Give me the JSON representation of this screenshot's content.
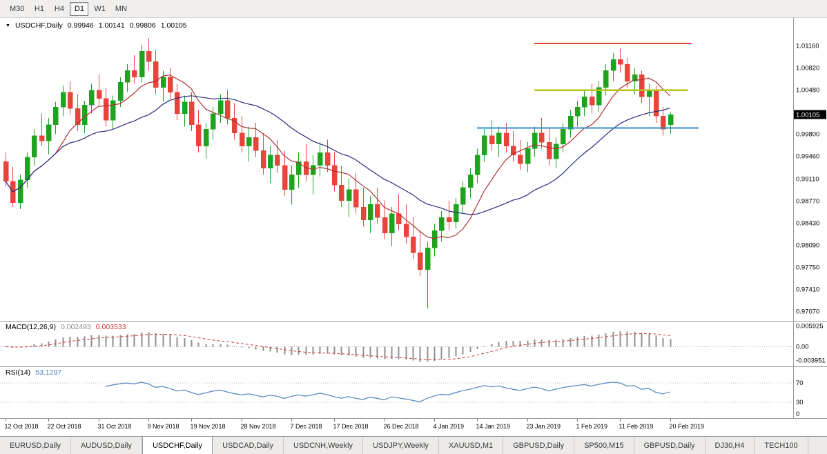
{
  "colors": {
    "bull": "#1fa31f",
    "bear": "#e8443c",
    "ma_fast": "#b03030",
    "ma_slow": "#28287e",
    "macd_hist": "#8f8f8f",
    "macd_signal": "#cc3838",
    "rsi_line": "#4f81bd",
    "grid_dotted": "#bcbcbc",
    "axis_line": "#9a9a9a",
    "price_box_bg": "#000000",
    "price_box_text": "#ffffff"
  },
  "toolbar": {
    "timeframes": [
      {
        "label": "M30",
        "active": false
      },
      {
        "label": "H1",
        "active": false
      },
      {
        "label": "H4",
        "active": false
      },
      {
        "label": "D1",
        "active": true
      },
      {
        "label": "W1",
        "active": false
      },
      {
        "label": "MN",
        "active": false
      }
    ]
  },
  "chart": {
    "menu_icon": "▼",
    "title_symbol": "USDCHF,Daily",
    "ohlc": {
      "open": "0.99946",
      "high": "1.00141",
      "low": "0.99806",
      "close": "1.00105"
    }
  },
  "macd_panel": {
    "name": "MACD(12,26,9)",
    "value_main": "0.002493",
    "value_signal": "0.003533"
  },
  "rsi_panel": {
    "name": "RSI(14)",
    "value": "53.1297"
  },
  "chart_data": {
    "type": "candlestick",
    "symbol": "USDCHF",
    "timeframe": "Daily",
    "x_labels": [
      "12 Oct 2018",
      "22 Oct 2018",
      "31 Oct 2018",
      "9 Nov 2018",
      "19 Nov 2018",
      "28 Nov 2018",
      "7 Dec 2018",
      "17 Dec 2018",
      "26 Dec 2018",
      "4 Jan 2019",
      "14 Jan 2019",
      "23 Jan 2019",
      "1 Feb 2019",
      "11 Feb 2019",
      "20 Feb 2019"
    ],
    "x_tick_indices": [
      0,
      6,
      13,
      20,
      26,
      33,
      40,
      46,
      53,
      60,
      66,
      73,
      80,
      86,
      93
    ],
    "price_axis": {
      "min": 0.9695,
      "max": 1.0155,
      "labels": [
        "1.01160",
        "1.00820",
        "1.00480",
        "0.99800",
        "0.99460",
        "0.99110",
        "0.98770",
        "0.98430",
        "0.98090",
        "0.97750",
        "0.97410",
        "0.97070"
      ]
    },
    "current_price": 1.00105,
    "macd_axis": {
      "min": -0.005,
      "max": 0.0068,
      "labels": [
        "0.005925",
        "0.00",
        "-0.003951"
      ]
    },
    "rsi_axis": {
      "min": 0,
      "max": 100,
      "labels": [
        "70",
        "30",
        "0"
      ],
      "levels": [
        70,
        30
      ]
    },
    "macd_params": {
      "fast": 12,
      "slow": 26,
      "signal": 9
    },
    "rsi_period": 14,
    "moving_averages": [
      {
        "period": 8,
        "color": "#b03030"
      },
      {
        "period": 21,
        "color": "#28287e"
      }
    ],
    "overlays": [
      {
        "name": "resistance-line",
        "color": "#ef4136",
        "price": 1.012,
        "from_index": 74,
        "to_index": 96,
        "width": 2
      },
      {
        "name": "pivot-line",
        "color": "#b5c418",
        "price": 1.0048,
        "from_index": 74,
        "to_index": 95.5,
        "width": 2.5
      },
      {
        "name": "support-line",
        "color": "#3a87c8",
        "price": 0.999,
        "from_index": 66,
        "to_index": 97,
        "width": 2
      }
    ],
    "candles": [
      [
        0.9938,
        0.9952,
        0.99,
        0.9908
      ],
      [
        0.9908,
        0.993,
        0.9868,
        0.9875
      ],
      [
        0.9875,
        0.9918,
        0.9865,
        0.991
      ],
      [
        0.991,
        0.9952,
        0.9898,
        0.9945
      ],
      [
        0.9945,
        0.9988,
        0.9932,
        0.9978
      ],
      [
        0.9978,
        1.0012,
        0.9962,
        0.997
      ],
      [
        0.997,
        1.0005,
        0.995,
        0.9995
      ],
      [
        0.9995,
        1.003,
        0.998,
        1.0022
      ],
      [
        1.0022,
        1.0055,
        1.0008,
        1.0045
      ],
      [
        1.0045,
        1.0062,
        1.001,
        1.002
      ],
      [
        1.002,
        1.0042,
        0.9985,
        0.9995
      ],
      [
        0.9995,
        1.0032,
        0.9982,
        1.0025
      ],
      [
        1.0025,
        1.0058,
        1.0012,
        1.0048
      ],
      [
        1.0048,
        1.0072,
        1.0025,
        1.0035
      ],
      [
        1.0035,
        1.0052,
        0.9992,
        1.0002
      ],
      [
        1.0002,
        1.004,
        0.9988,
        1.0032
      ],
      [
        1.0032,
        1.0068,
        1.0022,
        1.006
      ],
      [
        1.006,
        1.0088,
        1.0045,
        1.0078
      ],
      [
        1.0078,
        1.0102,
        1.0058,
        1.0068
      ],
      [
        1.0068,
        1.0118,
        1.006,
        1.0108
      ],
      [
        1.0108,
        1.0128,
        1.0078,
        1.0092
      ],
      [
        1.0092,
        1.011,
        1.0042,
        1.0052
      ],
      [
        1.0052,
        1.0078,
        1.003,
        1.0068
      ],
      [
        1.0068,
        1.0082,
        1.0035,
        1.0045
      ],
      [
        1.0045,
        1.0058,
        1.0002,
        1.0012
      ],
      [
        1.0012,
        1.004,
        0.9992,
        1.003
      ],
      [
        1.003,
        1.0045,
        0.9985,
        0.9995
      ],
      [
        0.9995,
        1.0018,
        0.9952,
        0.9962
      ],
      [
        0.9962,
        0.9998,
        0.9942,
        0.9988
      ],
      [
        0.9988,
        1.0022,
        0.9972,
        1.0012
      ],
      [
        1.0012,
        1.0042,
        0.9998,
        1.0032
      ],
      [
        1.0032,
        1.0048,
        0.9995,
        1.0005
      ],
      [
        1.0005,
        1.0028,
        0.9972,
        0.9982
      ],
      [
        0.9982,
        1.0008,
        0.9952,
        0.9962
      ],
      [
        0.9962,
        0.9992,
        0.9938,
        0.9975
      ],
      [
        0.9975,
        0.9998,
        0.9945,
        0.9955
      ],
      [
        0.9955,
        0.9982,
        0.9918,
        0.9928
      ],
      [
        0.9928,
        0.9962,
        0.9905,
        0.9948
      ],
      [
        0.9948,
        0.9972,
        0.992,
        0.9932
      ],
      [
        0.9932,
        0.9955,
        0.9885,
        0.9895
      ],
      [
        0.9895,
        0.9932,
        0.9872,
        0.9918
      ],
      [
        0.9918,
        0.9952,
        0.9898,
        0.9938
      ],
      [
        0.9938,
        0.9965,
        0.9908,
        0.9918
      ],
      [
        0.9918,
        0.9948,
        0.9888,
        0.9932
      ],
      [
        0.9932,
        0.9968,
        0.9915,
        0.9952
      ],
      [
        0.9952,
        0.9972,
        0.9922,
        0.9932
      ],
      [
        0.9932,
        0.9952,
        0.9892,
        0.9902
      ],
      [
        0.9902,
        0.9932,
        0.9868,
        0.9878
      ],
      [
        0.9878,
        0.9912,
        0.9852,
        0.9895
      ],
      [
        0.9895,
        0.992,
        0.9858,
        0.9868
      ],
      [
        0.9868,
        0.9898,
        0.9838,
        0.9848
      ],
      [
        0.9848,
        0.9885,
        0.9828,
        0.9872
      ],
      [
        0.9872,
        0.9898,
        0.9842,
        0.9852
      ],
      [
        0.9852,
        0.9878,
        0.9818,
        0.9828
      ],
      [
        0.9828,
        0.9868,
        0.9808,
        0.9858
      ],
      [
        0.9858,
        0.9888,
        0.9832,
        0.9842
      ],
      [
        0.9842,
        0.9872,
        0.9812,
        0.9822
      ],
      [
        0.9822,
        0.9852,
        0.9788,
        0.9798
      ],
      [
        0.9798,
        0.9832,
        0.9762,
        0.9772
      ],
      [
        0.9772,
        0.9815,
        0.9712,
        0.9805
      ],
      [
        0.9805,
        0.9842,
        0.9792,
        0.9832
      ],
      [
        0.9832,
        0.9862,
        0.9815,
        0.9852
      ],
      [
        0.9852,
        0.9878,
        0.9832,
        0.9845
      ],
      [
        0.9845,
        0.9882,
        0.9835,
        0.9872
      ],
      [
        0.9872,
        0.9908,
        0.9858,
        0.9898
      ],
      [
        0.9898,
        0.9928,
        0.9882,
        0.9918
      ],
      [
        0.9918,
        0.9958,
        0.9905,
        0.9948
      ],
      [
        0.9948,
        0.9988,
        0.9938,
        0.9978
      ],
      [
        0.9978,
        1.0002,
        0.9955,
        0.9965
      ],
      [
        0.9965,
        0.9992,
        0.9945,
        0.9982
      ],
      [
        0.9982,
        0.9998,
        0.9952,
        0.9962
      ],
      [
        0.9962,
        0.9985,
        0.9938,
        0.9948
      ],
      [
        0.9948,
        0.9972,
        0.9925,
        0.9935
      ],
      [
        0.9935,
        0.9968,
        0.9922,
        0.9958
      ],
      [
        0.9958,
        0.9992,
        0.9945,
        0.9982
      ],
      [
        0.9982,
        1.0005,
        0.9958,
        0.9968
      ],
      [
        0.9968,
        0.999,
        0.9932,
        0.9942
      ],
      [
        0.9942,
        0.9975,
        0.9928,
        0.9965
      ],
      [
        0.9965,
        0.9998,
        0.9952,
        0.9988
      ],
      [
        0.9988,
        1.0018,
        0.9975,
        1.0008
      ],
      [
        1.0008,
        1.0032,
        0.9992,
        1.0022
      ],
      [
        1.0022,
        1.0048,
        1.0008,
        1.0038
      ],
      [
        1.0038,
        1.0058,
        1.0012,
        1.0025
      ],
      [
        1.0025,
        1.0062,
        1.0015,
        1.0052
      ],
      [
        1.0052,
        1.0088,
        1.004,
        1.0078
      ],
      [
        1.0078,
        1.0105,
        1.0062,
        1.0095
      ],
      [
        1.0095,
        1.0112,
        1.0075,
        1.0088
      ],
      [
        1.0088,
        1.0098,
        1.0052,
        1.0062
      ],
      [
        1.0062,
        1.0082,
        1.0042,
        1.0072
      ],
      [
        1.0072,
        1.0078,
        1.0028,
        1.0038
      ],
      [
        1.0038,
        1.0058,
        1.0008,
        1.0048
      ],
      [
        1.0048,
        1.0055,
        0.9998,
        1.0008
      ],
      [
        1.0008,
        1.0022,
        0.9978,
        0.9988
      ],
      [
        0.99946,
        1.00141,
        0.99806,
        1.00105
      ]
    ]
  },
  "tabs": [
    {
      "label": "EURUSD,Daily",
      "active": false
    },
    {
      "label": "AUDUSD,Daily",
      "active": false
    },
    {
      "label": "USDCHF,Daily",
      "active": true
    },
    {
      "label": "USDCAD,Daily",
      "active": false
    },
    {
      "label": "USDCNH,Weekly",
      "active": false
    },
    {
      "label": "USDJPY,Weekly",
      "active": false
    },
    {
      "label": "XAUUSD,M1",
      "active": false
    },
    {
      "label": "GBPUSD,Daily",
      "active": false
    },
    {
      "label": "SP500,M15",
      "active": false
    },
    {
      "label": "GBPUSD,Daily",
      "active": false
    },
    {
      "label": "DJ30,H4",
      "active": false
    },
    {
      "label": "TECH100",
      "active": false
    }
  ]
}
